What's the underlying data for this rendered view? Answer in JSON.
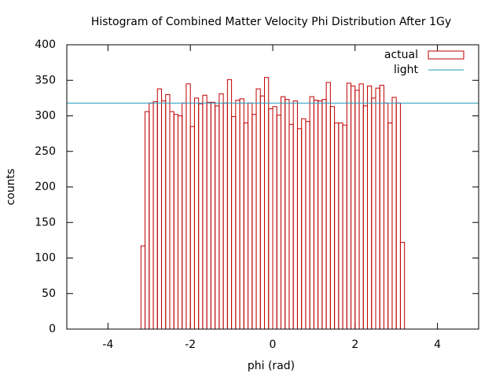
{
  "chart_data": {
    "type": "histogram",
    "title": "Histogram of Combined Matter Velocity Phi Distribution After 1Gy",
    "x_label": "phi (rad)",
    "y_label": "counts",
    "bins": [
      -3.2,
      -3.1,
      -3.0,
      -2.9,
      -2.8,
      -2.7,
      -2.6,
      -2.5,
      -2.4,
      -2.3,
      -2.2,
      -2.1,
      -2.0,
      -1.9,
      -1.8,
      -1.7,
      -1.6,
      -1.5,
      -1.4,
      -1.3,
      -1.2,
      -1.1,
      -1.0,
      -0.9,
      -0.8,
      -0.7,
      -0.6,
      -0.5,
      -0.4,
      -0.3,
      -0.2,
      -0.1,
      0.0,
      0.1,
      0.2,
      0.3,
      0.4,
      0.5,
      0.6,
      0.7,
      0.8,
      0.9,
      1.0,
      1.1,
      1.2,
      1.3,
      1.4,
      1.5,
      1.6,
      1.7,
      1.8,
      1.9,
      2.0,
      2.1,
      2.2,
      2.3,
      2.4,
      2.5,
      2.6,
      2.7,
      2.8,
      2.9,
      3.0,
      3.1,
      3.2
    ],
    "series": [
      {
        "name": "actual",
        "color": "#c00000",
        "values": [
          117,
          306,
          318,
          320,
          338,
          321,
          330,
          306,
          302,
          300,
          318,
          345,
          285,
          325,
          317,
          329,
          319,
          319,
          314,
          331,
          318,
          351,
          299,
          322,
          324,
          290,
          318,
          302,
          338,
          328,
          354,
          310,
          313,
          301,
          327,
          323,
          288,
          321,
          282,
          296,
          292,
          327,
          322,
          321,
          323,
          347,
          313,
          290,
          290,
          287,
          346,
          342,
          336,
          345,
          314,
          342,
          325,
          339,
          343,
          318,
          290,
          326,
          318,
          122
        ]
      }
    ],
    "reference_lines": [
      {
        "name": "light",
        "color": "#1e9bbd",
        "value": 318
      }
    ],
    "xlim": [
      -5,
      5
    ],
    "xticks": [
      -4,
      -2,
      0,
      2,
      4
    ],
    "ylim": [
      0,
      400
    ],
    "yticks": [
      0,
      50,
      100,
      150,
      200,
      250,
      300,
      350,
      400
    ],
    "legend": "top-right"
  }
}
